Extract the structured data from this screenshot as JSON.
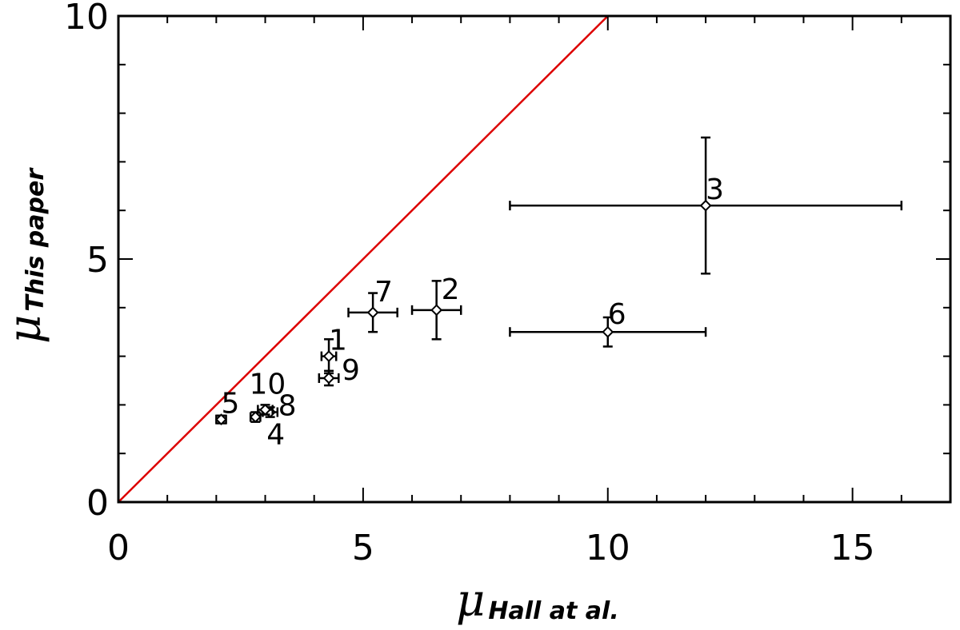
{
  "chart_data": {
    "type": "scatter",
    "title": "",
    "xlabel": {
      "symbol": "μ",
      "subscript": "Hall at al."
    },
    "ylabel": {
      "symbol": "μ",
      "subscript": "This paper"
    },
    "xlim": [
      0,
      17
    ],
    "ylim": [
      0,
      10
    ],
    "x_ticks": [
      0,
      5,
      10,
      15
    ],
    "y_ticks": [
      0,
      5,
      10
    ],
    "x_minor_step": 1,
    "y_minor_step": 1,
    "grid": false,
    "reference_line": {
      "description": "y = x",
      "color": "#dd0000",
      "x": [
        0,
        10
      ],
      "y": [
        0,
        10
      ]
    },
    "points": [
      {
        "label": "1",
        "x": 4.3,
        "y": 3.0,
        "xerr": 0.15,
        "yerr": 0.35
      },
      {
        "label": "2",
        "x": 6.5,
        "y": 3.95,
        "xerr": 0.5,
        "yerr": 0.6
      },
      {
        "label": "3",
        "x": 12.0,
        "y": 6.1,
        "xerr": 4.0,
        "yerr": 1.4
      },
      {
        "label": "4",
        "x": 2.8,
        "y": 1.75,
        "xerr": 0.1,
        "yerr": 0.1
      },
      {
        "label": "5",
        "x": 2.1,
        "y": 1.7,
        "xerr": 0.1,
        "yerr": 0.08
      },
      {
        "label": "6",
        "x": 10.0,
        "y": 3.5,
        "xerr": 2.0,
        "yerr": 0.3
      },
      {
        "label": "7",
        "x": 5.2,
        "y": 3.9,
        "xerr": 0.5,
        "yerr": 0.4
      },
      {
        "label": "8",
        "x": 3.1,
        "y": 1.85,
        "xerr": 0.15,
        "yerr": 0.1
      },
      {
        "label": "9",
        "x": 4.3,
        "y": 2.55,
        "xerr": 0.2,
        "yerr": 0.15
      },
      {
        "label": "10",
        "x": 3.0,
        "y": 1.9,
        "xerr": 0.15,
        "yerr": 0.1
      }
    ]
  }
}
